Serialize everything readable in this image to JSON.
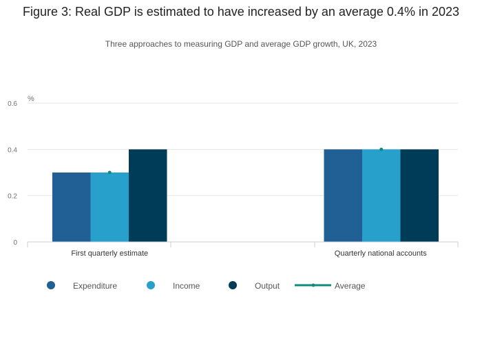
{
  "title": "Figure 3: Real GDP is estimated to have increased by an average 0.4% in 2023",
  "subtitle": "Three approaches to measuring GDP and average GDP growth, UK, 2023",
  "chart_data": {
    "type": "bar",
    "y_unit": "%",
    "ylim": [
      0,
      0.6
    ],
    "yticks": [
      0,
      0.2,
      0.4,
      0.6
    ],
    "grid": true,
    "legend_position": "bottom",
    "categories": [
      "First quarterly estimate",
      "Quarterly national accounts"
    ],
    "series": [
      {
        "name": "Expenditure",
        "values": [
          0.3,
          0.4
        ],
        "color": "#206095"
      },
      {
        "name": "Income",
        "values": [
          0.3,
          0.4
        ],
        "color": "#27a0cc"
      },
      {
        "name": "Output",
        "values": [
          0.4,
          0.4
        ],
        "color": "#003c57"
      }
    ],
    "average": {
      "name": "Average",
      "values": [
        0.3,
        0.4
      ],
      "color": "#118c7b",
      "type": "marker"
    }
  }
}
